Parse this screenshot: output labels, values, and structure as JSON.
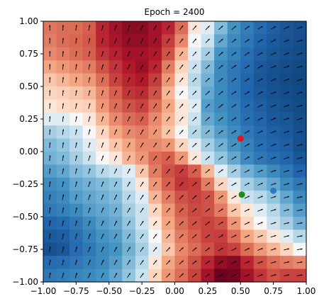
{
  "chart_data": {
    "type": "heatmap",
    "title": "Epoch = 2400",
    "xlabel": "",
    "ylabel": "",
    "xlim": [
      -1.0,
      1.0
    ],
    "ylim": [
      -1.0,
      1.0
    ],
    "grid": false,
    "colormap": "RdBu",
    "x_ticks": [
      "−1.00",
      "−0.75",
      "−0.50",
      "−0.25",
      "0.00",
      "0.25",
      "0.50",
      "0.75",
      "1.00"
    ],
    "y_ticks": [
      "1.00",
      "0.75",
      "0.50",
      "0.25",
      "0.00",
      "−0.25",
      "−0.50",
      "−0.75",
      "−1.00"
    ],
    "grid_size": 20,
    "heatmap_values_rows_top_to_bottom": [
      [
        0.42,
        0.45,
        0.45,
        0.5,
        0.7,
        0.8,
        0.88,
        0.88,
        0.8,
        0.7,
        0.45,
        0.05,
        -0.05,
        -0.3,
        -0.5,
        -0.62,
        -0.72,
        -0.78,
        -0.82,
        -0.85
      ],
      [
        0.4,
        0.45,
        0.48,
        0.52,
        0.7,
        0.78,
        0.85,
        0.85,
        0.8,
        0.62,
        0.35,
        0.0,
        -0.1,
        -0.4,
        -0.55,
        -0.65,
        -0.75,
        -0.8,
        -0.83,
        -0.86
      ],
      [
        0.35,
        0.4,
        0.45,
        0.5,
        0.65,
        0.72,
        0.8,
        0.8,
        0.75,
        0.55,
        0.2,
        -0.05,
        -0.2,
        -0.5,
        -0.6,
        -0.7,
        -0.78,
        -0.82,
        -0.85,
        -0.87
      ],
      [
        0.25,
        0.3,
        0.35,
        0.4,
        0.55,
        0.65,
        0.75,
        0.82,
        0.7,
        0.4,
        0.1,
        -0.1,
        -0.3,
        -0.55,
        -0.65,
        -0.72,
        -0.8,
        -0.84,
        -0.86,
        -0.88
      ],
      [
        0.15,
        0.2,
        0.25,
        0.3,
        0.45,
        0.6,
        0.7,
        0.75,
        0.62,
        0.3,
        0.05,
        -0.15,
        -0.35,
        -0.55,
        -0.65,
        -0.75,
        -0.82,
        -0.85,
        -0.87,
        -0.89
      ],
      [
        0.1,
        0.12,
        0.15,
        0.2,
        0.35,
        0.5,
        0.65,
        0.68,
        0.55,
        0.2,
        0.0,
        -0.1,
        -0.4,
        -0.55,
        -0.65,
        -0.75,
        -0.8,
        -0.84,
        -0.86,
        -0.88
      ],
      [
        0.05,
        0.08,
        0.1,
        0.12,
        0.3,
        0.45,
        0.55,
        0.6,
        0.45,
        0.25,
        0.05,
        -0.05,
        -0.45,
        -0.55,
        -0.62,
        -0.72,
        -0.78,
        -0.82,
        -0.85,
        -0.87
      ],
      [
        -0.05,
        -0.05,
        0.0,
        0.05,
        0.2,
        0.35,
        0.45,
        0.5,
        0.35,
        0.2,
        0.05,
        -0.1,
        -0.4,
        -0.5,
        -0.6,
        -0.7,
        -0.75,
        -0.8,
        -0.82,
        -0.86
      ],
      [
        -0.2,
        -0.15,
        -0.1,
        0.0,
        0.1,
        0.25,
        0.35,
        0.4,
        0.3,
        0.15,
        0.0,
        -0.15,
        -0.3,
        -0.45,
        -0.55,
        -0.65,
        -0.72,
        -0.78,
        -0.8,
        -0.85
      ],
      [
        -0.3,
        -0.25,
        -0.15,
        -0.05,
        0.05,
        0.15,
        0.25,
        0.35,
        0.35,
        0.3,
        0.1,
        -0.05,
        -0.2,
        -0.35,
        -0.5,
        -0.6,
        -0.7,
        -0.75,
        -0.78,
        -0.85
      ],
      [
        -0.35,
        -0.3,
        -0.2,
        -0.1,
        0.0,
        0.05,
        0.2,
        0.3,
        0.45,
        0.5,
        0.3,
        0.05,
        -0.1,
        -0.25,
        -0.4,
        -0.55,
        -0.65,
        -0.7,
        -0.75,
        -0.82
      ],
      [
        -0.45,
        -0.4,
        -0.3,
        -0.25,
        -0.15,
        -0.1,
        -0.05,
        0.15,
        0.4,
        0.55,
        0.62,
        0.5,
        0.2,
        -0.05,
        -0.2,
        -0.35,
        -0.45,
        -0.55,
        -0.65,
        -0.75
      ],
      [
        -0.55,
        -0.5,
        -0.4,
        -0.35,
        -0.3,
        -0.25,
        -0.1,
        0.05,
        0.3,
        0.5,
        0.65,
        0.62,
        0.4,
        0.1,
        -0.05,
        -0.2,
        -0.3,
        -0.4,
        -0.55,
        -0.65
      ],
      [
        -0.6,
        -0.55,
        -0.45,
        -0.4,
        -0.35,
        -0.3,
        -0.15,
        -0.05,
        0.2,
        0.4,
        0.55,
        0.6,
        0.55,
        0.3,
        0.05,
        -0.1,
        -0.15,
        -0.25,
        -0.4,
        -0.55
      ],
      [
        -0.65,
        -0.6,
        -0.55,
        -0.45,
        -0.4,
        -0.35,
        -0.2,
        -0.1,
        0.1,
        0.3,
        0.5,
        0.58,
        0.55,
        0.4,
        0.15,
        0.05,
        -0.05,
        -0.15,
        -0.3,
        -0.45
      ],
      [
        -0.75,
        -0.72,
        -0.65,
        -0.55,
        -0.45,
        -0.4,
        -0.25,
        -0.1,
        0.05,
        0.25,
        0.45,
        0.55,
        0.6,
        0.55,
        0.3,
        0.1,
        0.0,
        -0.1,
        -0.2,
        -0.35
      ],
      [
        -0.8,
        -0.78,
        -0.7,
        -0.6,
        -0.5,
        -0.45,
        -0.3,
        -0.15,
        0.0,
        0.2,
        0.4,
        0.5,
        0.6,
        0.62,
        0.45,
        0.25,
        0.15,
        0.05,
        -0.05,
        -0.15
      ],
      [
        -0.85,
        -0.82,
        -0.72,
        -0.65,
        -0.55,
        -0.5,
        -0.35,
        -0.2,
        -0.05,
        0.15,
        0.35,
        0.45,
        0.55,
        0.65,
        0.6,
        0.45,
        0.3,
        0.2,
        0.1,
        0.0
      ],
      [
        -0.72,
        -0.7,
        -0.65,
        -0.6,
        -0.55,
        -0.45,
        -0.3,
        -0.15,
        0.05,
        0.25,
        0.4,
        0.55,
        0.7,
        0.85,
        0.9,
        0.7,
        0.55,
        0.45,
        0.4,
        0.35
      ],
      [
        -0.65,
        -0.62,
        -0.58,
        -0.55,
        -0.5,
        -0.4,
        -0.25,
        -0.1,
        0.1,
        0.3,
        0.45,
        0.6,
        0.8,
        0.98,
        0.95,
        0.8,
        0.65,
        0.55,
        0.6,
        0.6
      ]
    ],
    "points": [
      {
        "x": 0.5,
        "y": 0.1,
        "color": "#e8141c"
      },
      {
        "x": 0.51,
        "y": -0.33,
        "color": "#1f8a22"
      },
      {
        "x": 0.75,
        "y": -0.3,
        "color": "#2b7bb9"
      }
    ]
  }
}
